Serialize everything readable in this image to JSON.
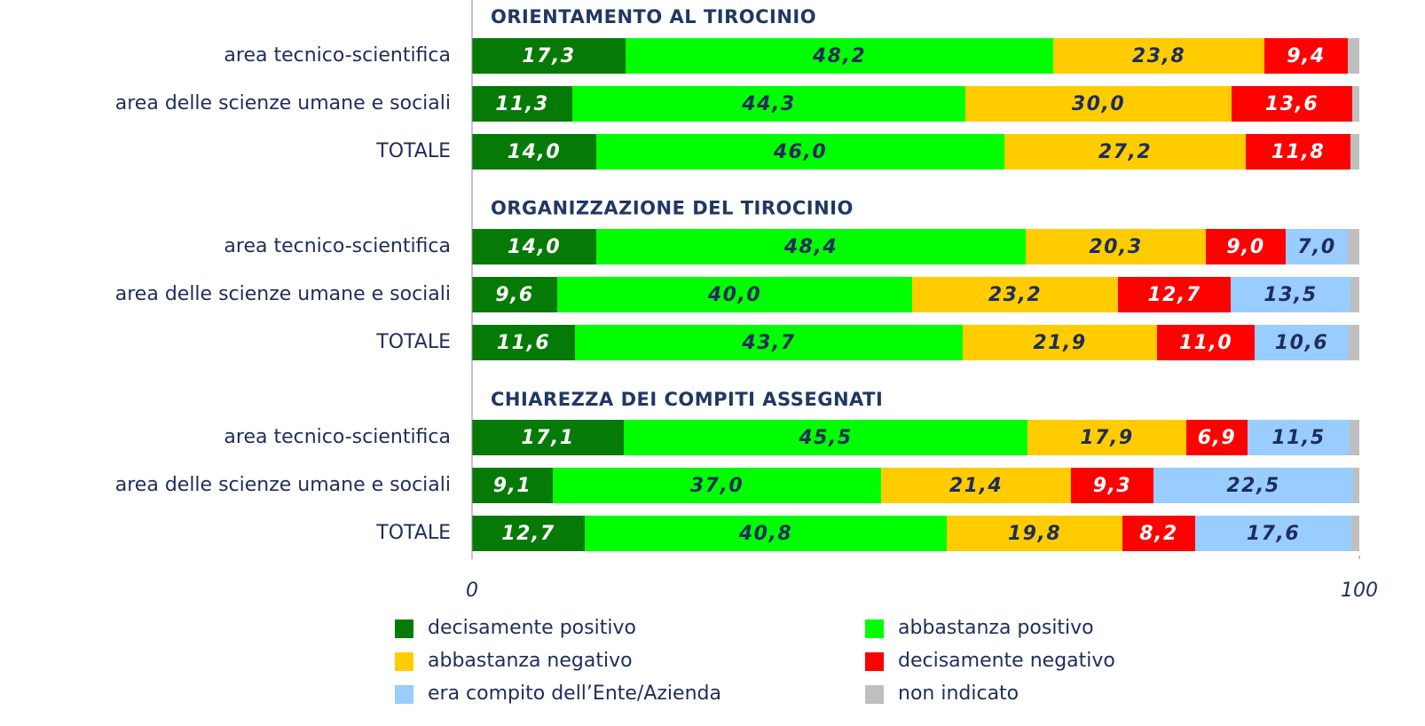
{
  "chart_data": {
    "type": "bar",
    "orientation": "horizontal",
    "stacked": true,
    "group_titles": [
      "ORIENTAMENTO AL TIROCINIO",
      "ORGANIZZAZIONE DEL TIROCINIO",
      "CHIAREZZA DEI COMPITI ASSEGNATI"
    ],
    "categories": [
      "area tecnico-scientifica",
      "area delle scienze umane e sociali",
      "TOTALE",
      "area tecnico-scientifica",
      "area delle scienze umane e sociali",
      "TOTALE",
      "area tecnico-scientifica",
      "area delle scienze umane e sociali",
      "TOTALE"
    ],
    "series": [
      {
        "name": "decisamente positivo",
        "color": "#067a06",
        "label_color": "#ffffff",
        "values": [
          17.3,
          11.3,
          14.0,
          14.0,
          9.6,
          11.6,
          17.1,
          9.1,
          12.7
        ],
        "value_labels": [
          "17,3",
          "11,3",
          "14,0",
          "14,0",
          "9,6",
          "11,6",
          "17,1",
          "9,1",
          "12,7"
        ]
      },
      {
        "name": "abbastanza positivo",
        "color": "#00ff00",
        "label_color": "#1f2d5c",
        "values": [
          48.2,
          44.3,
          46.0,
          48.4,
          40.0,
          43.7,
          45.5,
          37.0,
          40.8
        ],
        "value_labels": [
          "48,2",
          "44,3",
          "46,0",
          "48,4",
          "40,0",
          "43,7",
          "45,5",
          "37,0",
          "40,8"
        ]
      },
      {
        "name": "abbastanza negativo",
        "color": "#ffcc00",
        "label_color": "#1f2d5c",
        "values": [
          23.8,
          30.0,
          27.2,
          20.3,
          23.2,
          21.9,
          17.9,
          21.4,
          19.8
        ],
        "value_labels": [
          "23,8",
          "30,0",
          "27,2",
          "20,3",
          "23,2",
          "21,9",
          "17,9",
          "21,4",
          "19,8"
        ]
      },
      {
        "name": "decisamente negativo",
        "color": "#ff0000",
        "label_color": "#ffffff",
        "values": [
          9.4,
          13.6,
          11.8,
          9.0,
          12.7,
          11.0,
          6.9,
          9.3,
          8.2
        ],
        "value_labels": [
          "9,4",
          "13,6",
          "11,8",
          "9,0",
          "12,7",
          "11,0",
          "6,9",
          "9,3",
          "8,2"
        ]
      },
      {
        "name": "era compito dell’Ente/Azienda",
        "color": "#99ccff",
        "label_color": "#1f2d5c",
        "values": [
          null,
          null,
          null,
          7.0,
          13.5,
          10.6,
          11.5,
          22.5,
          17.6
        ],
        "value_labels": [
          null,
          null,
          null,
          "7,0",
          "13,5",
          "10,6",
          "11,5",
          "22,5",
          "17,6"
        ]
      },
      {
        "name": "non indicato",
        "color": "#bfbfbf",
        "values": [
          1.3,
          0.8,
          1.0,
          1.3,
          1.0,
          1.2,
          1.1,
          0.7,
          0.9
        ]
      }
    ],
    "xlim": [
      0,
      100
    ],
    "xticks": [
      0,
      100
    ]
  }
}
